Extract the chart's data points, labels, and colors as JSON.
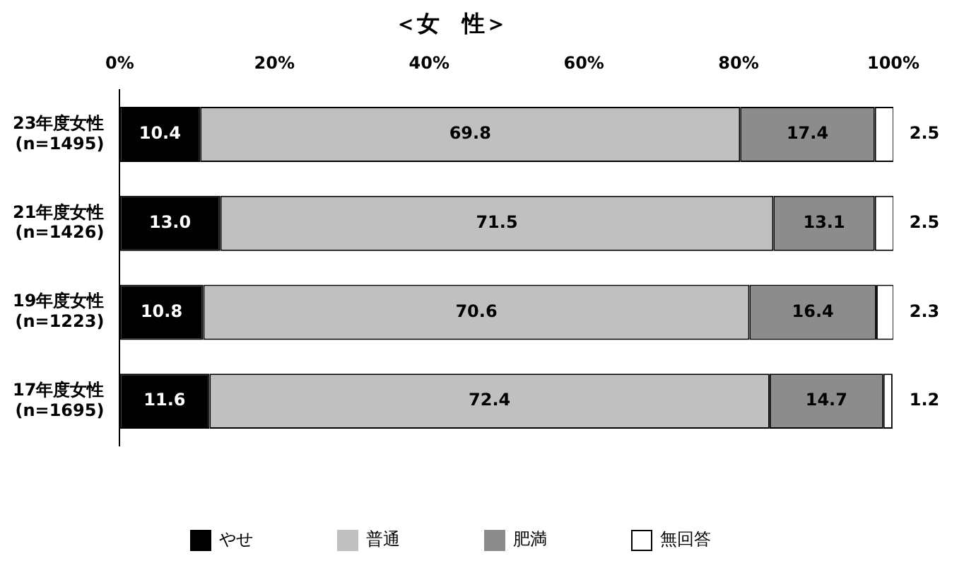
{
  "chart_data": {
    "type": "bar",
    "title": "＜女　性＞",
    "orientation": "horizontal",
    "stacked": true,
    "categories": [
      "23年度女性\n(n=1495)",
      "21年度女性\n(n=1426)",
      "19年度女性\n(n=1223)",
      "17年度女性\n(n=1695)"
    ],
    "series": [
      {
        "name": "やせ",
        "color": "#000000",
        "values": [
          10.4,
          13.0,
          10.8,
          11.6
        ],
        "value_labels": [
          "10.4",
          "13.0",
          "10.8",
          "11.6"
        ]
      },
      {
        "name": "普通",
        "color": "#c0c0c0",
        "values": [
          69.8,
          71.5,
          70.6,
          72.4
        ],
        "value_labels": [
          "69.8",
          "71.5",
          "70.6",
          "72.4"
        ]
      },
      {
        "name": "肥満",
        "color": "#8c8c8c",
        "values": [
          17.4,
          13.1,
          16.4,
          14.7
        ],
        "value_labels": [
          "17.4",
          "13.1",
          "16.4",
          "14.7"
        ]
      },
      {
        "name": "無回答",
        "color": "#ffffff",
        "values": [
          2.5,
          2.5,
          2.3,
          1.2
        ],
        "value_labels": [
          "2.5",
          "2.5",
          "2.3",
          "1.2"
        ]
      }
    ],
    "xlim": [
      0,
      100
    ],
    "xticks": [
      {
        "value": 0,
        "label": "0%"
      },
      {
        "value": 20,
        "label": "20%"
      },
      {
        "value": 40,
        "label": "40%"
      },
      {
        "value": 60,
        "label": "60%"
      },
      {
        "value": 80,
        "label": "80%"
      },
      {
        "value": 100,
        "label": "100%"
      }
    ],
    "grid": false,
    "legend": "bottom"
  }
}
